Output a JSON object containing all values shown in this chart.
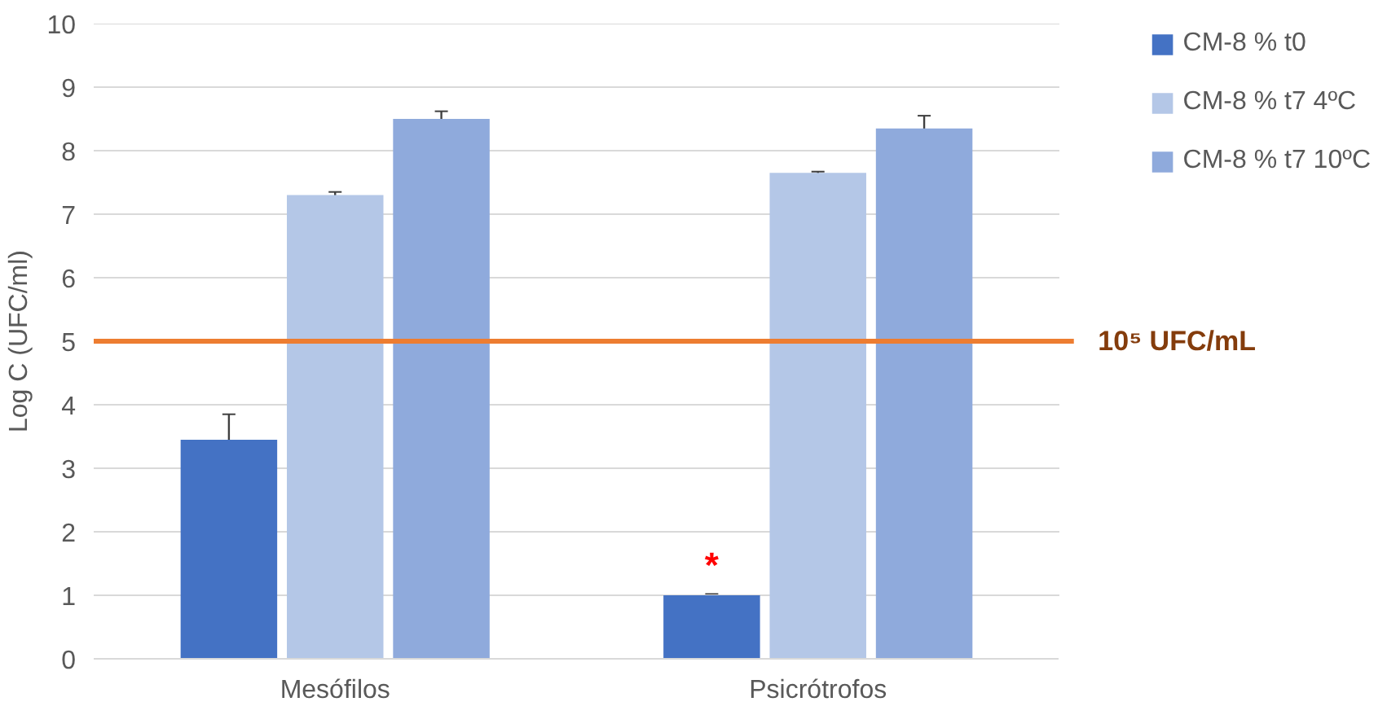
{
  "chart_data": {
    "type": "bar",
    "ylabel": "Log C (UFC/ml)",
    "categories": [
      "Mesófilos",
      "Psicrótrofos"
    ],
    "series": [
      {
        "name": "CM-8 % t0",
        "color": "#4472c4",
        "values": [
          3.45,
          1.0
        ],
        "errors": [
          0.4,
          0.02
        ]
      },
      {
        "name": "CM-8 % t7 4ºC",
        "color": "#b4c7e7",
        "values": [
          7.3,
          7.65
        ],
        "errors": [
          0.05,
          0.02
        ]
      },
      {
        "name": "CM-8 % t7 10ºC",
        "color": "#8faadc",
        "values": [
          8.5,
          8.35
        ],
        "errors": [
          0.12,
          0.2
        ]
      }
    ],
    "ylim": [
      0,
      10
    ],
    "yticks": [
      0,
      1,
      2,
      3,
      4,
      5,
      6,
      7,
      8,
      9,
      10
    ],
    "grid": "y",
    "legend": "right",
    "ref_lines": [
      {
        "axis": "y",
        "value": 5,
        "label": "10⁵ UFC/mL",
        "color": "#ed7d31"
      }
    ],
    "annotations": [
      "*"
    ]
  }
}
